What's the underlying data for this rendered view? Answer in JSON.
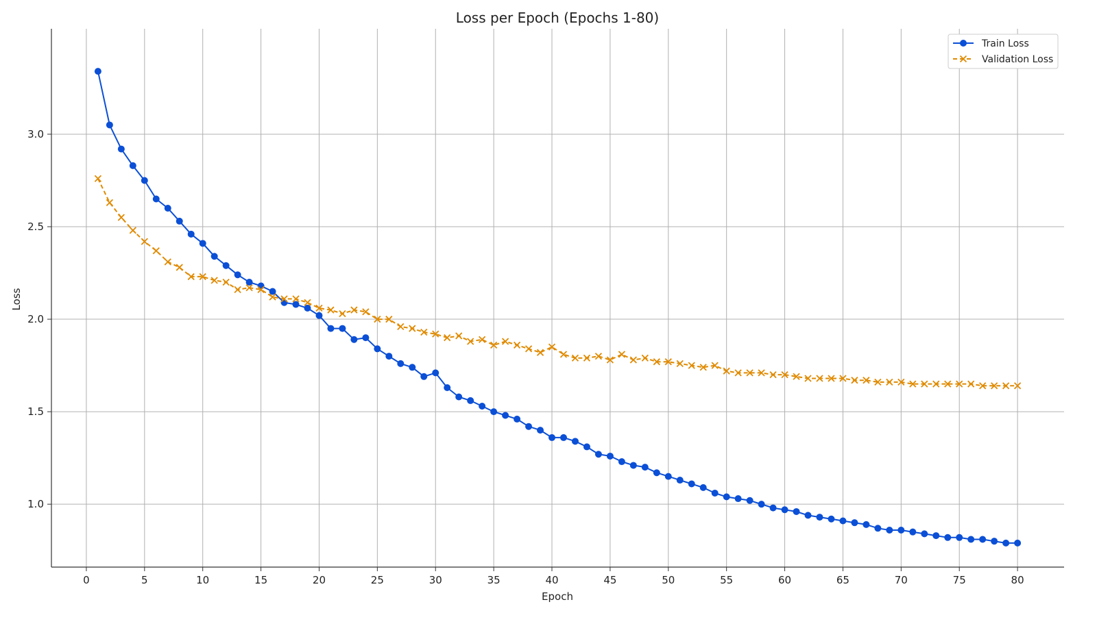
{
  "chart_data": {
    "type": "line",
    "title": "Loss per Epoch (Epochs 1-80)",
    "xlabel": "Epoch",
    "ylabel": "Loss",
    "xlim": [
      -3,
      84
    ],
    "ylim": [
      0.66,
      3.57
    ],
    "xticks": [
      0,
      5,
      10,
      15,
      20,
      25,
      30,
      35,
      40,
      45,
      50,
      55,
      60,
      65,
      70,
      75,
      80
    ],
    "xtick_labels": [
      "0",
      "5",
      "10",
      "15",
      "20",
      "25",
      "30",
      "35",
      "40",
      "45",
      "50",
      "55",
      "60",
      "65",
      "70",
      "75",
      "80"
    ],
    "yticks": [
      1.0,
      1.5,
      2.0,
      2.5,
      3.0
    ],
    "ytick_labels": [
      "1.0",
      "1.5",
      "2.0",
      "2.5",
      "3.0"
    ],
    "grid": true,
    "legend_position": "top-right",
    "x": [
      1,
      2,
      3,
      4,
      5,
      6,
      7,
      8,
      9,
      10,
      11,
      12,
      13,
      14,
      15,
      16,
      17,
      18,
      19,
      20,
      21,
      22,
      23,
      24,
      25,
      26,
      27,
      28,
      29,
      30,
      31,
      32,
      33,
      34,
      35,
      36,
      37,
      38,
      39,
      40,
      41,
      42,
      43,
      44,
      45,
      46,
      47,
      48,
      49,
      50,
      51,
      52,
      53,
      54,
      55,
      56,
      57,
      58,
      59,
      60,
      61,
      62,
      63,
      64,
      65,
      66,
      67,
      68,
      69,
      70,
      71,
      72,
      73,
      74,
      75,
      76,
      77,
      78,
      79,
      80
    ],
    "series": [
      {
        "name": "Train Loss",
        "color": "#0b4fd6",
        "marker": "circle",
        "line_style": "solid",
        "values": [
          3.34,
          3.05,
          2.92,
          2.83,
          2.75,
          2.65,
          2.6,
          2.53,
          2.46,
          2.41,
          2.34,
          2.29,
          2.24,
          2.2,
          2.18,
          2.15,
          2.09,
          2.08,
          2.06,
          2.02,
          1.95,
          1.95,
          1.89,
          1.9,
          1.84,
          1.8,
          1.76,
          1.74,
          1.69,
          1.71,
          1.63,
          1.58,
          1.56,
          1.53,
          1.5,
          1.48,
          1.46,
          1.42,
          1.4,
          1.36,
          1.36,
          1.34,
          1.31,
          1.27,
          1.26,
          1.23,
          1.21,
          1.2,
          1.17,
          1.15,
          1.13,
          1.11,
          1.09,
          1.06,
          1.04,
          1.03,
          1.02,
          1.0,
          0.98,
          0.97,
          0.96,
          0.94,
          0.93,
          0.92,
          0.91,
          0.9,
          0.89,
          0.87,
          0.86,
          0.86,
          0.85,
          0.84,
          0.83,
          0.82,
          0.82,
          0.81,
          0.81,
          0.8,
          0.79,
          0.79
        ]
      },
      {
        "name": "Validation Loss",
        "color": "#e08a00",
        "marker": "x",
        "line_style": "dashed",
        "values": [
          2.76,
          2.63,
          2.55,
          2.48,
          2.42,
          2.37,
          2.31,
          2.28,
          2.23,
          2.23,
          2.21,
          2.2,
          2.16,
          2.17,
          2.16,
          2.12,
          2.11,
          2.11,
          2.09,
          2.06,
          2.05,
          2.03,
          2.05,
          2.04,
          2.0,
          2.0,
          1.96,
          1.95,
          1.93,
          1.92,
          1.9,
          1.91,
          1.88,
          1.89,
          1.86,
          1.88,
          1.86,
          1.84,
          1.82,
          1.85,
          1.81,
          1.79,
          1.79,
          1.8,
          1.78,
          1.81,
          1.78,
          1.79,
          1.77,
          1.77,
          1.76,
          1.75,
          1.74,
          1.75,
          1.72,
          1.71,
          1.71,
          1.71,
          1.7,
          1.7,
          1.69,
          1.68,
          1.68,
          1.68,
          1.68,
          1.67,
          1.67,
          1.66,
          1.66,
          1.66,
          1.65,
          1.65,
          1.65,
          1.65,
          1.65,
          1.65,
          1.64,
          1.64,
          1.64,
          1.64
        ]
      }
    ]
  }
}
